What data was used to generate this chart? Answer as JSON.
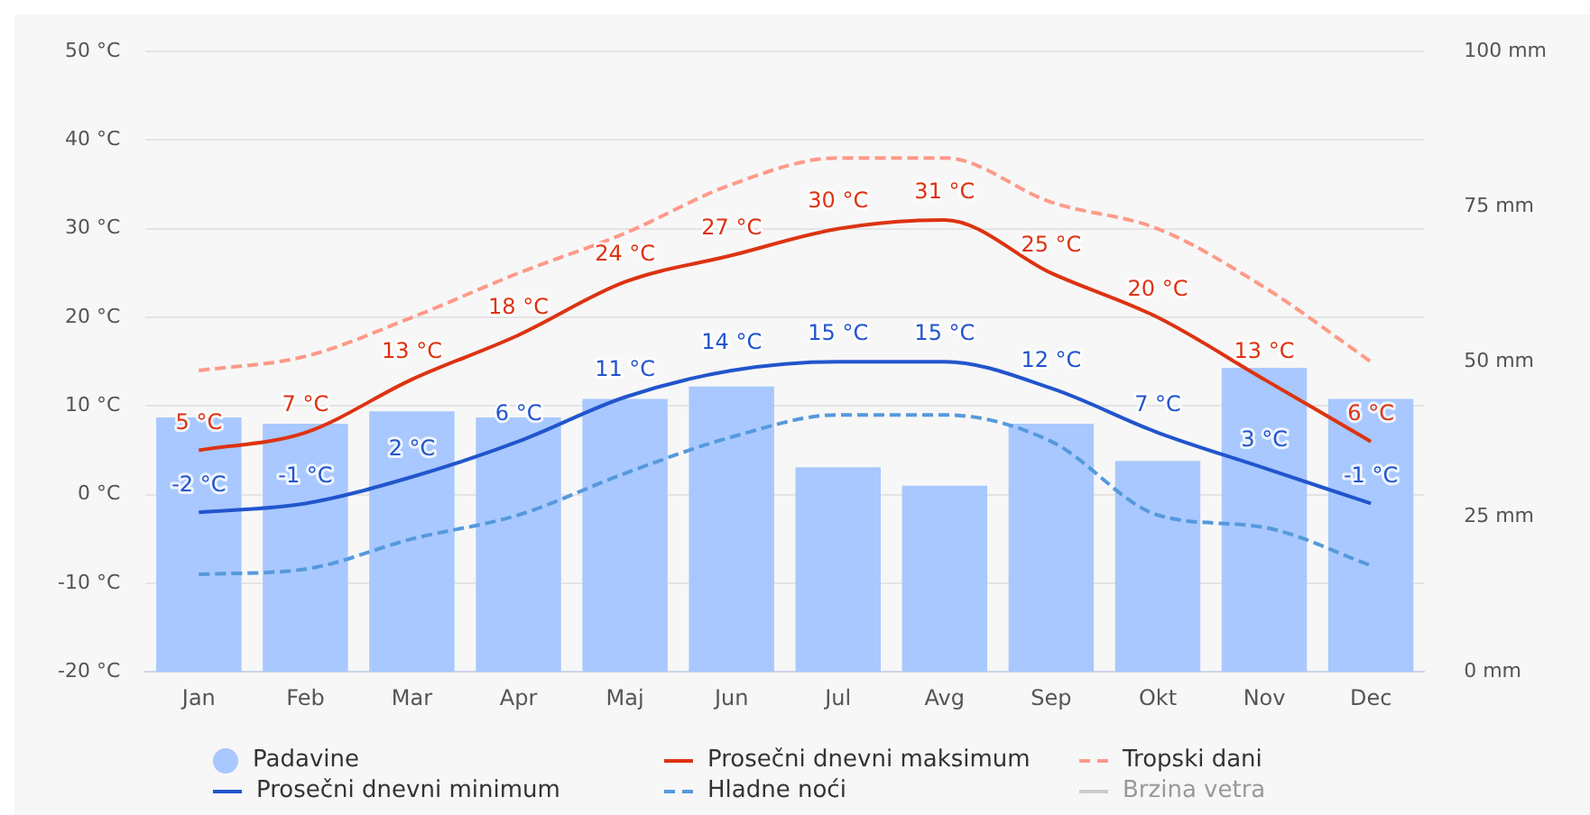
{
  "chart_data": {
    "type": "bar",
    "categories": [
      "Jan",
      "Feb",
      "Mar",
      "Apr",
      "Maj",
      "Jun",
      "Jul",
      "Avg",
      "Sep",
      "Okt",
      "Nov",
      "Dec"
    ],
    "series": [
      {
        "name": "Padavine",
        "axis": "y2",
        "color": "#a8c8ff",
        "values": [
          41,
          40,
          42,
          41,
          44,
          46,
          33,
          30,
          40,
          34,
          49,
          44
        ]
      },
      {
        "name": "Prosečni dnevni maksimum",
        "type": "line",
        "color": "#dd3311",
        "line_style": "solid",
        "values": [
          5,
          7,
          13,
          18,
          24,
          27,
          30,
          31,
          25,
          20,
          13,
          6
        ],
        "value_labels": [
          "5 °C",
          "7 °C",
          "13 °C",
          "18 °C",
          "24 °C",
          "27 °C",
          "30 °C",
          "31 °C",
          "25 °C",
          "20 °C",
          "13 °C",
          "6 °C"
        ]
      },
      {
        "name": "Tropski dani",
        "type": "line",
        "color": "#ff9988",
        "line_style": "dashed",
        "values": [
          14,
          15.6,
          20,
          25,
          29.5,
          35,
          38,
          38,
          33,
          30,
          23.4,
          15
        ]
      },
      {
        "name": "Prosečni dnevni minimum",
        "type": "line",
        "color": "#2255cc",
        "line_style": "solid",
        "values": [
          -2,
          -1,
          2,
          6,
          11,
          14,
          15,
          15,
          12,
          7,
          3,
          -1
        ],
        "value_labels": [
          "-2 °C",
          "-1 °C",
          "2 °C",
          "6 °C",
          "11 °C",
          "14 °C",
          "15 °C",
          "15 °C",
          "12 °C",
          "7 °C",
          "3 °C",
          "-1 °C"
        ]
      },
      {
        "name": "Hladne noći",
        "type": "line",
        "color": "#5599dd",
        "line_style": "dashed",
        "values": [
          -9,
          -8.4,
          -5,
          -2.3,
          2.4,
          6.5,
          9,
          9,
          6,
          -2.3,
          -3.7,
          -8
        ]
      },
      {
        "name": "Brzina vetra",
        "type": "line",
        "color": "#cccccc",
        "line_style": "solid",
        "values": [
          null,
          null,
          null,
          null,
          null,
          null,
          null,
          null,
          null,
          null,
          null,
          null
        ]
      }
    ],
    "ylim": [
      -20,
      50
    ],
    "yticks": [
      {
        "value": -20,
        "label": "-20 °C"
      },
      {
        "value": -10,
        "label": "-10 °C"
      },
      {
        "value": 0,
        "label": "0 °C"
      },
      {
        "value": 10,
        "label": "10 °C"
      },
      {
        "value": 20,
        "label": "20 °C"
      },
      {
        "value": 30,
        "label": "30 °C"
      },
      {
        "value": 40,
        "label": "40 °C"
      },
      {
        "value": 50,
        "label": "50 °C"
      }
    ],
    "y2lim": [
      0,
      100
    ],
    "y2ticks": [
      {
        "value": 0,
        "label": "0 mm"
      },
      {
        "value": 25,
        "label": "25 mm"
      },
      {
        "value": 50,
        "label": "50 mm"
      },
      {
        "value": 75,
        "label": "75 mm"
      },
      {
        "value": 100,
        "label": "100 mm"
      }
    ],
    "grid": "y",
    "legend": "bottom"
  }
}
